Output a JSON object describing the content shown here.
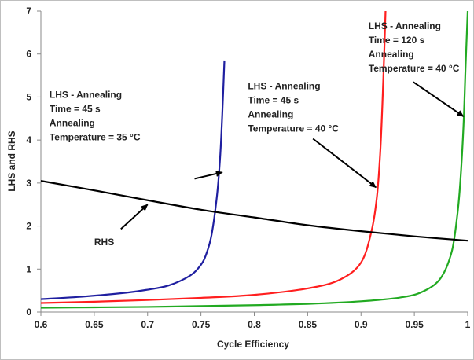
{
  "chart_data": {
    "type": "line",
    "xlabel": "Cycle Efficiency",
    "ylabel": "LHS and RHS",
    "xlim": [
      0.6,
      1.0
    ],
    "ylim": [
      0,
      7
    ],
    "x_ticks": [
      "0.6",
      "0.65",
      "0.7",
      "0.75",
      "0.8",
      "0.85",
      "0.9",
      "0.95",
      "1"
    ],
    "y_ticks": [
      "0",
      "1",
      "2",
      "3",
      "4",
      "5",
      "6",
      "7"
    ],
    "grid": false,
    "legend": "none",
    "series": [
      {
        "color": "#1f1fa0",
        "x": [
          0.6,
          0.64,
          0.68,
          0.7,
          0.72,
          0.74,
          0.75,
          0.755,
          0.76,
          0.765,
          0.768,
          0.77,
          0.772
        ],
        "y": [
          0.3,
          0.36,
          0.45,
          0.52,
          0.62,
          0.85,
          1.1,
          1.35,
          1.8,
          2.7,
          3.6,
          4.6,
          5.85
        ]
      },
      {
        "color": "#ff1f1f",
        "x": [
          0.6,
          0.65,
          0.7,
          0.75,
          0.8,
          0.85,
          0.88,
          0.9,
          0.91,
          0.915,
          0.918,
          0.92,
          0.922,
          0.923
        ],
        "y": [
          0.21,
          0.24,
          0.28,
          0.33,
          0.4,
          0.55,
          0.75,
          1.15,
          1.9,
          2.7,
          3.7,
          4.8,
          6.2,
          7.0
        ]
      },
      {
        "color": "#22aa22",
        "x": [
          0.6,
          0.65,
          0.7,
          0.75,
          0.8,
          0.85,
          0.9,
          0.94,
          0.96,
          0.975,
          0.985,
          0.99,
          0.993,
          0.996,
          0.998,
          1.0
        ],
        "y": [
          0.1,
          0.11,
          0.12,
          0.14,
          0.16,
          0.19,
          0.25,
          0.35,
          0.5,
          0.8,
          1.4,
          2.2,
          3.0,
          4.3,
          5.7,
          7.0
        ]
      },
      {
        "color": "#000000",
        "x": [
          0.6,
          0.65,
          0.7,
          0.75,
          0.8,
          0.85,
          0.9,
          0.95,
          1.0
        ],
        "y": [
          3.05,
          2.83,
          2.6,
          2.38,
          2.2,
          2.02,
          1.88,
          1.76,
          1.66
        ]
      }
    ],
    "annotations": [
      {
        "lines": [
          "LHS - Annealing",
          "Time =  45 s",
          "Annealing",
          "Temperature = 35 °C"
        ],
        "at": [
          0.608,
          4.98
        ],
        "arrow_from": [
          0.744,
          3.1
        ],
        "arrow_to": [
          0.77,
          3.25
        ]
      },
      {
        "lines": [
          "LHS - Annealing",
          "Time =  45 s",
          "Annealing",
          "Temperature = 40 °C"
        ],
        "at": [
          0.794,
          5.18
        ],
        "arrow_from": [
          0.855,
          4.03
        ],
        "arrow_to": [
          0.914,
          2.9
        ]
      },
      {
        "lines": [
          "LHS - Annealing",
          "Time =  120 s",
          "Annealing",
          "Temperature = 40 °C"
        ],
        "at": [
          0.907,
          6.58
        ],
        "arrow_from": [
          0.949,
          5.35
        ],
        "arrow_to": [
          0.996,
          4.55
        ]
      },
      {
        "lines": [
          "RHS"
        ],
        "at": [
          0.65,
          1.55
        ],
        "arrow_from": [
          0.675,
          1.93
        ],
        "arrow_to": [
          0.7,
          2.5
        ]
      }
    ]
  }
}
